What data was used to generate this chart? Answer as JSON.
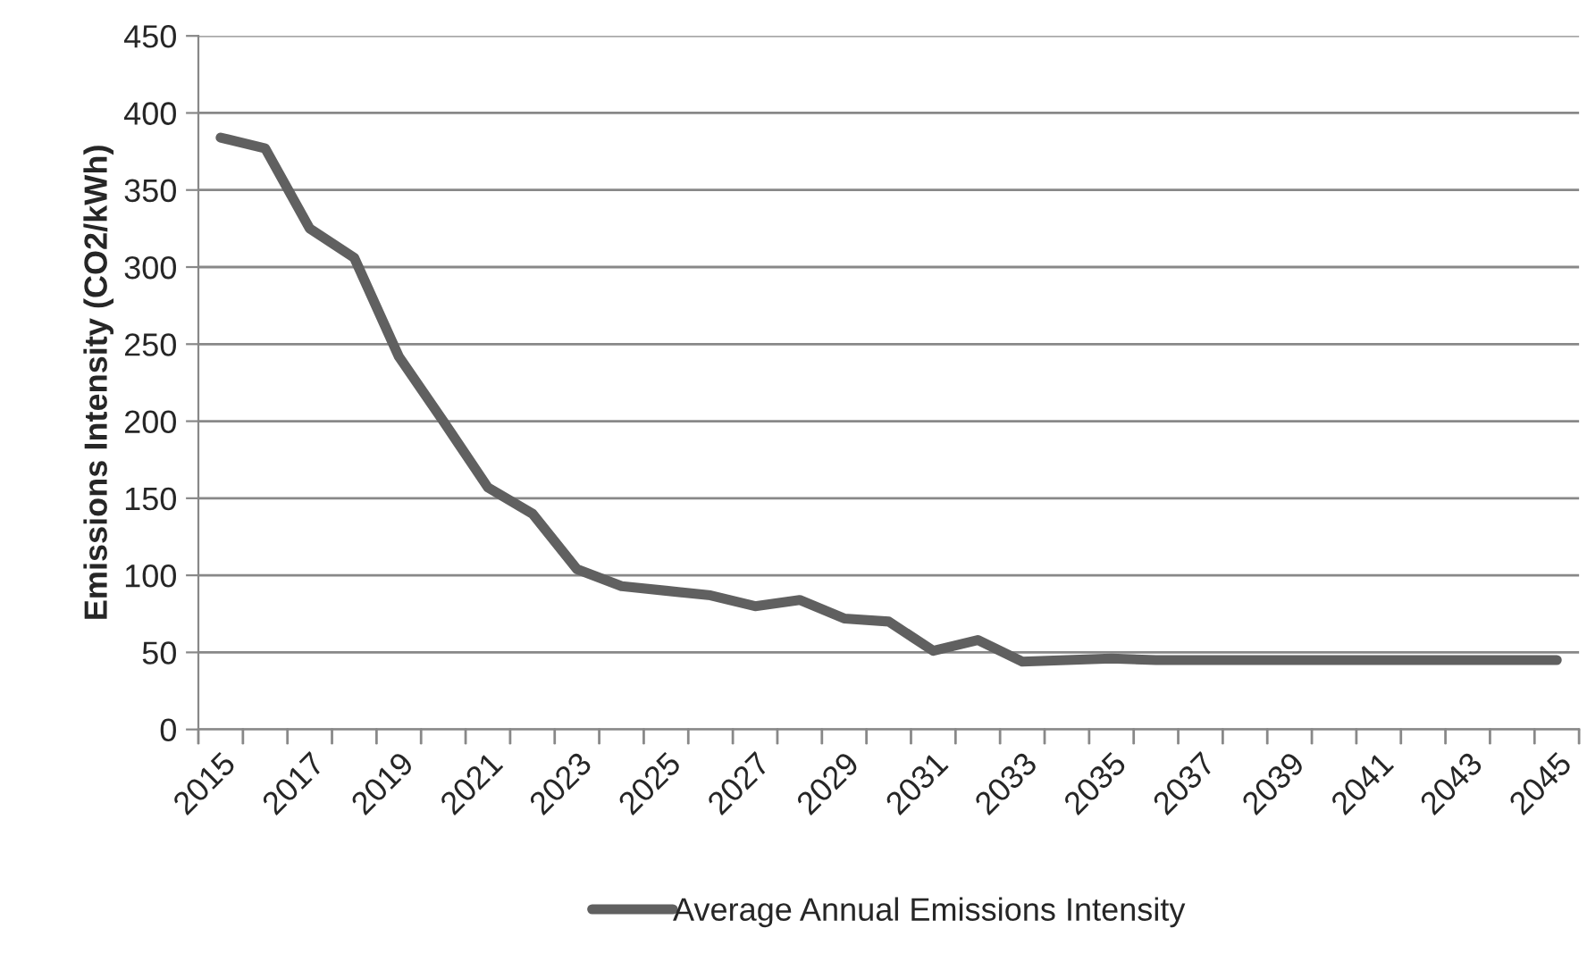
{
  "chart_data": {
    "type": "line",
    "ylabel": "Emissions Intensity (CO2/kWh)",
    "categories": [
      "2015",
      null,
      "2017",
      null,
      "2019",
      null,
      "2021",
      null,
      "2023",
      null,
      "2025",
      null,
      "2027",
      null,
      "2029",
      null,
      "2031",
      null,
      "2033",
      null,
      "2035",
      null,
      "2037",
      null,
      "2039",
      null,
      "2041",
      null,
      "2043",
      null,
      "2045"
    ],
    "series": [
      {
        "name": "Average Annual Emissions Intensity",
        "color": "#606060",
        "values": [
          384,
          377,
          325,
          306,
          242,
          200,
          157,
          140,
          104,
          93,
          90,
          87,
          80,
          84,
          72,
          70,
          51,
          58,
          44,
          45,
          46,
          45,
          45,
          45,
          45,
          45,
          45,
          45,
          45,
          45,
          45
        ]
      }
    ],
    "ylim": [
      0,
      450
    ],
    "yticks": [
      0,
      50,
      100,
      150,
      200,
      250,
      300,
      350,
      400,
      450
    ],
    "grid": "y",
    "legend": "bottom",
    "marker": "none",
    "line_style": "solid"
  }
}
